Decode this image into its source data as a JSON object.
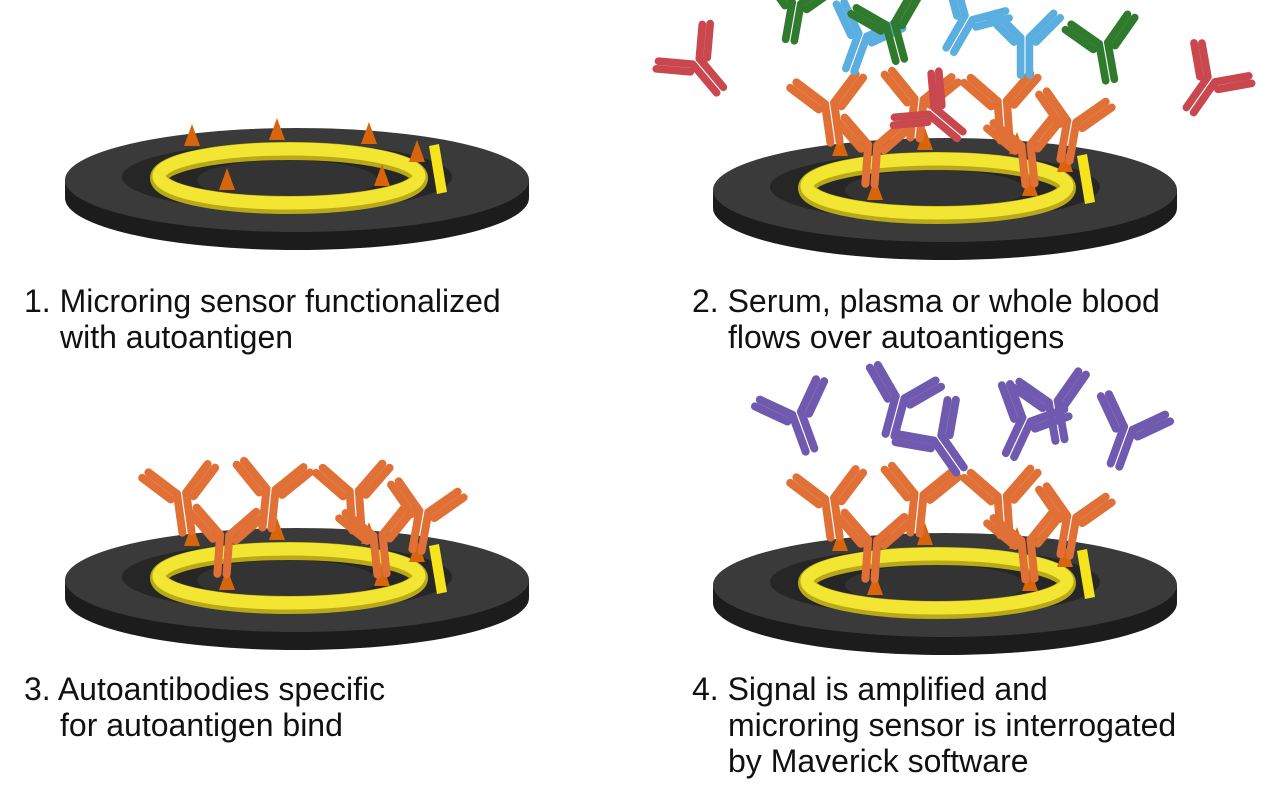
{
  "panels": [
    {
      "id": "step-1",
      "caption": {
        "line1": "1. Microring sensor functionalized",
        "line2": "with autoantigen",
        "line3": ""
      }
    },
    {
      "id": "step-2",
      "caption": {
        "line1": "2. Serum, plasma or whole blood",
        "line2": "flows over autoantigens",
        "line3": ""
      }
    },
    {
      "id": "step-3",
      "caption": {
        "line1": "3. Autoantibodies specific",
        "line2": "for autoantigen bind",
        "line3": ""
      }
    },
    {
      "id": "step-4",
      "caption": {
        "line1": "4. Signal is amplified and",
        "line2": "microring sensor is interrogated",
        "line3": "by Maverick software"
      }
    }
  ],
  "colors": {
    "disk_top": "#3a3a3a",
    "disk_side": "#1c1c1c",
    "ring": "#f2e632",
    "ring_edge": "#b9a919",
    "waveguide": "#f5e41b",
    "antigen": "#d8650c",
    "autoantibody": "#e07036",
    "antibody_red": "#c9474e",
    "antibody_blue": "#5aaee0",
    "antibody_green": "#2f7a2d",
    "secondary_antibody": "#6f5ab0"
  }
}
